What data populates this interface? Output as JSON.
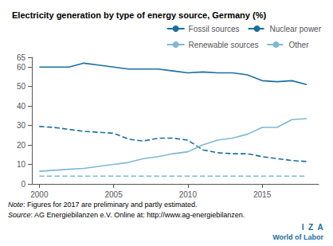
{
  "chart_data": {
    "type": "line",
    "title": "Electricity generation by type of energy source, Germany (%)",
    "x": [
      2000,
      2001,
      2002,
      2003,
      2004,
      2005,
      2006,
      2007,
      2008,
      2009,
      2010,
      2011,
      2012,
      2013,
      2014,
      2015,
      2016,
      2017,
      2018
    ],
    "series": [
      {
        "name": "Fossil sources",
        "color": "#1a6fa0",
        "line_style": "solid",
        "values": [
          60,
          60,
          60,
          62,
          61,
          60,
          59,
          59,
          59,
          58,
          57,
          57.5,
          57,
          57,
          56,
          53,
          52.5,
          53,
          51
        ]
      },
      {
        "name": "Nuclear power",
        "color": "#1a6fa0",
        "line_style": "dashed",
        "values": [
          29.5,
          29,
          28,
          27,
          26.5,
          26,
          23,
          22,
          23.5,
          23.5,
          22.5,
          17.5,
          16,
          15.5,
          15.5,
          14,
          13,
          12,
          11.5
        ]
      },
      {
        "name": "Renewable sources",
        "color": "#7fb8d4",
        "line_style": "solid",
        "values": [
          6.5,
          7,
          7.5,
          8,
          9,
          10,
          11,
          13,
          14,
          15.5,
          16.5,
          20,
          22.5,
          23.5,
          25.5,
          29,
          29,
          33,
          33.5
        ]
      },
      {
        "name": "Other",
        "color": "#7fb8d4",
        "line_style": "dashed",
        "values": [
          4,
          4,
          4,
          4,
          4,
          4,
          4,
          4,
          4,
          4,
          4,
          4,
          4,
          4,
          4,
          4,
          4,
          4,
          4
        ]
      }
    ],
    "xlim": [
      1999.5,
      2018.8
    ],
    "xticks": [
      2000,
      2005,
      2010,
      2015
    ],
    "ylim": [
      0,
      65
    ],
    "yticks": [
      0,
      10,
      20,
      30,
      40,
      50,
      60
    ],
    "grid": false,
    "legend": "upper right",
    "annotations": [
      "Note: Figures for 2017 are preliminary and partly estimated.",
      "Source: AG Energiebilanzen e.V. Online at: http://www.ag-energiebilanzen.",
      "I  Z  A",
      "World of Labor"
    ]
  }
}
